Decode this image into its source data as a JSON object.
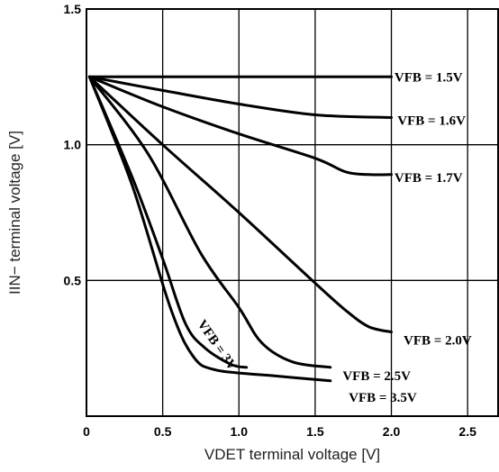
{
  "chart_data": {
    "type": "line",
    "title": "",
    "xlabel": "VDET terminal voltage [V]",
    "ylabel": "IIN− terminal voltage [V]",
    "xlim": [
      0,
      2.7
    ],
    "ylim": [
      0,
      1.5
    ],
    "grid": true,
    "x_ticks": [
      {
        "value": 0,
        "label": "0"
      },
      {
        "value": 0.5,
        "label": "0.5"
      },
      {
        "value": 1.0,
        "label": "1.0"
      },
      {
        "value": 1.5,
        "label": "1.5"
      },
      {
        "value": 2.0,
        "label": "2.0"
      },
      {
        "value": 2.5,
        "label": "2.5"
      }
    ],
    "y_ticks": [
      {
        "value": 0.5,
        "label": "0.5"
      },
      {
        "value": 1.0,
        "label": "1.0"
      },
      {
        "value": 1.5,
        "label": "1.5"
      }
    ],
    "series": [
      {
        "name": "VFB = 1.5V",
        "label_anchor": [
          2.02,
          1.25
        ],
        "points": [
          [
            0.02,
            1.25
          ],
          [
            2.0,
            1.25
          ]
        ]
      },
      {
        "name": "VFB = 1.6V",
        "label_anchor": [
          2.04,
          1.09
        ],
        "points": [
          [
            0.02,
            1.25
          ],
          [
            0.5,
            1.2
          ],
          [
            1.0,
            1.15
          ],
          [
            1.5,
            1.11
          ],
          [
            2.0,
            1.1
          ]
        ]
      },
      {
        "name": "VFB = 1.7V",
        "label_anchor": [
          2.02,
          0.88
        ],
        "points": [
          [
            0.02,
            1.25
          ],
          [
            0.5,
            1.14
          ],
          [
            1.0,
            1.04
          ],
          [
            1.5,
            0.95
          ],
          [
            1.7,
            0.9
          ],
          [
            1.85,
            0.89
          ],
          [
            2.0,
            0.89
          ]
        ]
      },
      {
        "name": "VFB = 2.0V",
        "label_anchor": [
          2.08,
          0.28
        ],
        "points": [
          [
            0.02,
            1.25
          ],
          [
            0.5,
            1.0
          ],
          [
            1.0,
            0.75
          ],
          [
            1.5,
            0.49
          ],
          [
            1.7,
            0.39
          ],
          [
            1.85,
            0.33
          ],
          [
            2.0,
            0.31
          ]
        ]
      },
      {
        "name": "VFB = 2.5V",
        "label_anchor": [
          1.68,
          0.15
        ],
        "points": [
          [
            0.02,
            1.25
          ],
          [
            0.4,
            0.97
          ],
          [
            0.75,
            0.6
          ],
          [
            1.0,
            0.4
          ],
          [
            1.15,
            0.27
          ],
          [
            1.35,
            0.2
          ],
          [
            1.6,
            0.18
          ]
        ]
      },
      {
        "name": "VFB = 3.5V",
        "label_anchor": [
          1.72,
          0.07
        ],
        "points": [
          [
            0.02,
            1.25
          ],
          [
            0.3,
            0.85
          ],
          [
            0.55,
            0.4
          ],
          [
            0.7,
            0.22
          ],
          [
            0.85,
            0.17
          ],
          [
            1.2,
            0.15
          ],
          [
            1.6,
            0.13
          ]
        ]
      },
      {
        "name": "VFB = 3V",
        "label_anchor": [
          0.75,
          0.35
        ],
        "label_rotation": 55,
        "points": [
          [
            0.02,
            1.25
          ],
          [
            0.3,
            0.88
          ],
          [
            0.5,
            0.58
          ],
          [
            0.65,
            0.34
          ],
          [
            0.78,
            0.25
          ],
          [
            0.95,
            0.19
          ],
          [
            1.05,
            0.18
          ]
        ]
      }
    ]
  }
}
